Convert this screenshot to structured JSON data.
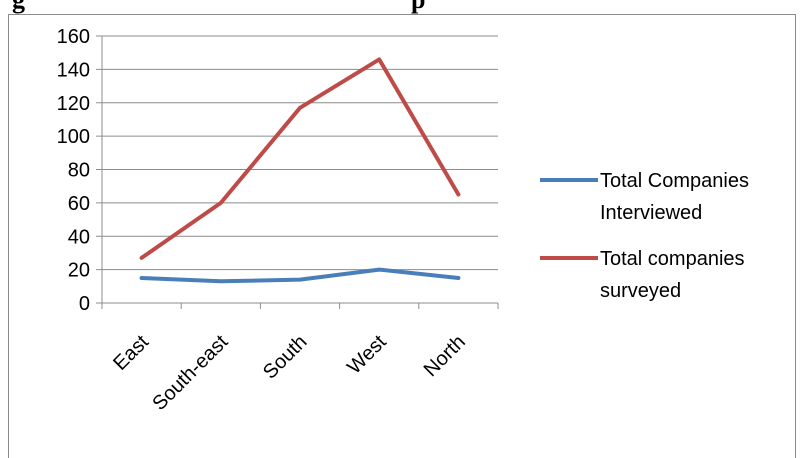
{
  "heading_fragments": [
    "g",
    "p"
  ],
  "chart_data": {
    "type": "line",
    "categories": [
      "East",
      "South-east",
      "South",
      "West",
      "North"
    ],
    "series": [
      {
        "name": "Total Companies Interviewed",
        "values": [
          15,
          13,
          14,
          20,
          15
        ],
        "color": "#4a7ebb"
      },
      {
        "name": "Total companies surveyed",
        "values": [
          27,
          60,
          117,
          146,
          65
        ],
        "color": "#be4b48"
      }
    ],
    "legend_lines": [
      [
        "Total Companies",
        "Interviewed"
      ],
      [
        "Total companies",
        "surveyed"
      ]
    ],
    "yticks": [
      "0",
      "20",
      "40",
      "60",
      "80",
      "100",
      "120",
      "140",
      "160"
    ],
    "ylim": [
      0,
      160
    ],
    "grid": true,
    "legend_position": "right"
  }
}
